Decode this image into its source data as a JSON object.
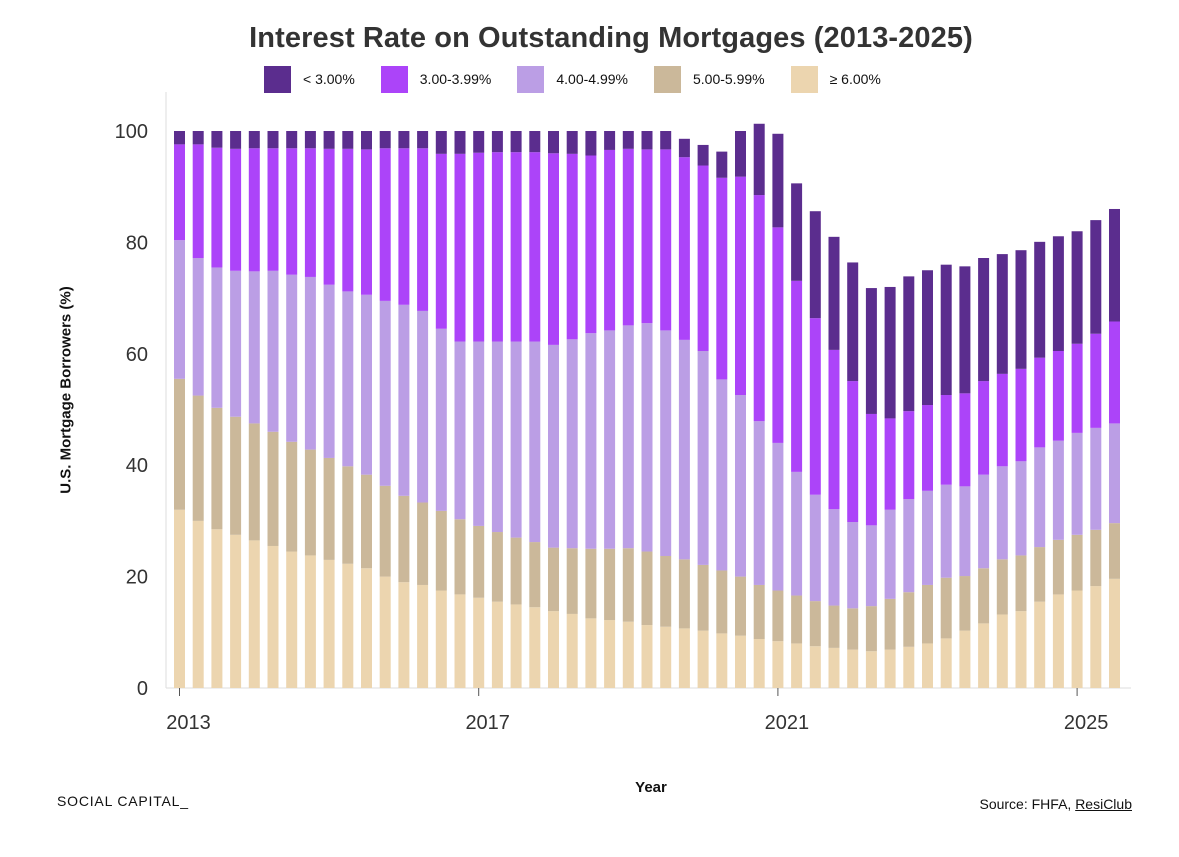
{
  "chart_data": {
    "type": "bar",
    "stacked": true,
    "title": "Interest Rate on Outstanding Mortgages (2013-2025)",
    "xlabel": "Year",
    "ylabel": "U.S. Mortgage Borrowers (%)",
    "ylim": [
      0,
      100
    ],
    "yticks": [
      0,
      20,
      40,
      60,
      80,
      100
    ],
    "xtick_labels": [
      "2013",
      "2017",
      "2021",
      "2025"
    ],
    "legend_position": "top",
    "grid": false,
    "series": [
      {
        "name": "≥ 6.00%",
        "color": "#ecd5af",
        "values": [
          32,
          30,
          28.5,
          27.5,
          26.5,
          25.5,
          24.5,
          23.8,
          23,
          22.3,
          21.5,
          20,
          19,
          18.5,
          17.5,
          16.8,
          16.2,
          15.5,
          15,
          14.5,
          13.8,
          13.3,
          12.5,
          12.2,
          11.9,
          11.3,
          11.0,
          10.7,
          10.3,
          9.8,
          9.4,
          8.8,
          8.4,
          8.0,
          7.5,
          7.2,
          6.9,
          6.6,
          6.9,
          7.4,
          8.0,
          8.9,
          10.3,
          11.6,
          13.2,
          13.8,
          15.5,
          16.8,
          17.5,
          18.3,
          19.6
        ]
      },
      {
        "name": "5.00-5.99%",
        "color": "#cbb89a",
        "values": [
          23.5,
          22.5,
          21.8,
          21.2,
          21,
          20.5,
          19.7,
          19,
          18.3,
          17.5,
          16.8,
          16.3,
          15.5,
          14.8,
          14.3,
          13.5,
          12.9,
          12.5,
          12,
          11.7,
          11.4,
          11.8,
          12.5,
          12.8,
          13.2,
          13.2,
          12.7,
          12.4,
          11.8,
          11.3,
          10.6,
          9.7,
          9.1,
          8.6,
          8.1,
          7.6,
          7.4,
          8.1,
          9.1,
          9.8,
          10.5,
          10.9,
          9.8,
          9.9,
          9.9,
          10.0,
          9.8,
          9.8,
          10.0,
          10.1,
          10.0
        ]
      },
      {
        "name": "4.00-4.99%",
        "color": "#bb9ee5",
        "values": [
          24.9,
          24.7,
          25.2,
          26.2,
          27.3,
          28.9,
          30,
          31,
          31.1,
          31.4,
          32.3,
          33.2,
          34.3,
          34.4,
          32.7,
          31.9,
          33.1,
          34.2,
          35.2,
          36.0,
          36.4,
          37.5,
          38.7,
          39.2,
          40.0,
          41.0,
          40.5,
          39.4,
          38.4,
          34.3,
          32.6,
          29.4,
          26.5,
          22.2,
          19.1,
          17.3,
          15.5,
          14.5,
          16.0,
          16.7,
          16.9,
          16.7,
          16.1,
          16.8,
          16.7,
          16.9,
          17.9,
          17.8,
          18.3,
          18.3,
          17.9
        ]
      },
      {
        "name": "3.00-3.99%",
        "color": "#ac44f9",
        "values": [
          17.2,
          20.4,
          21.5,
          21.9,
          22.1,
          22.0,
          22.7,
          23.1,
          24.4,
          25.6,
          26.1,
          27.4,
          28.1,
          29.2,
          31.4,
          33.7,
          33.9,
          34.0,
          34.0,
          34.0,
          34.4,
          33.3,
          31.9,
          32.4,
          31.7,
          31.2,
          32.5,
          32.8,
          33.3,
          36.2,
          39.2,
          40.6,
          38.7,
          34.3,
          31.7,
          28.6,
          25.3,
          20.0,
          16.4,
          15.8,
          15.4,
          16.1,
          16.7,
          16.8,
          16.6,
          16.6,
          16.1,
          16.1,
          16.0,
          16.9,
          18.3
        ]
      },
      {
        "name": "< 3.00%",
        "color": "#5b2d8e",
        "values": [
          2.4,
          2.4,
          3.0,
          3.2,
          3.1,
          3.1,
          3.1,
          3.1,
          3.2,
          3.2,
          3.3,
          3.1,
          3.1,
          3.1,
          4.1,
          4.1,
          3.9,
          3.8,
          3.8,
          3.8,
          4.0,
          4.1,
          4.4,
          3.4,
          3.2,
          3.3,
          3.3,
          3.3,
          3.7,
          4.7,
          8.2,
          12.8,
          16.8,
          17.5,
          19.2,
          20.3,
          21.3,
          22.6,
          23.6,
          24.2,
          24.2,
          23.4,
          22.8,
          22.1,
          21.5,
          21.3,
          20.8,
          20.6,
          20.2,
          20.4,
          20.2
        ]
      }
    ]
  }
}
